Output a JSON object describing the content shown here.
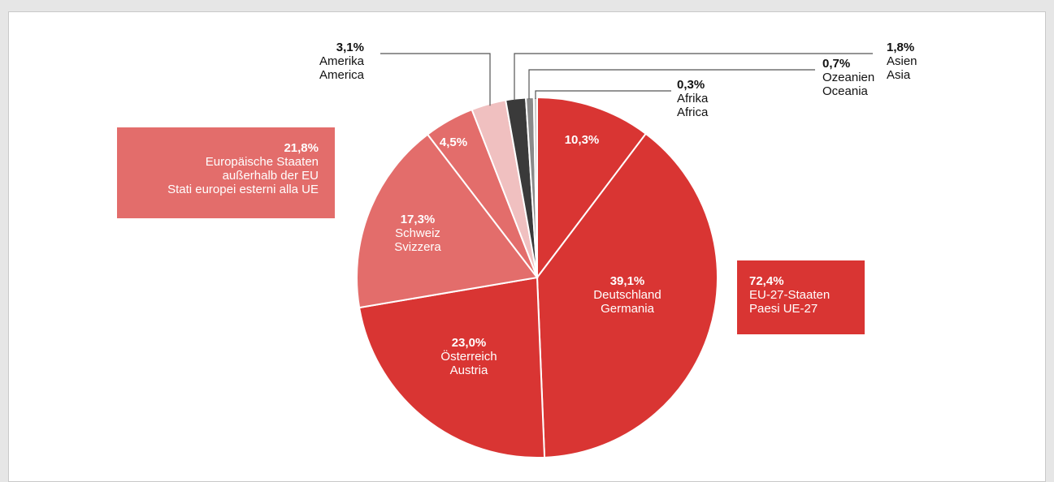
{
  "chart_data": {
    "type": "pie",
    "slices": [
      {
        "id": "de",
        "pct_label": "39,1%",
        "lines": [
          "Deutschland",
          "Germania"
        ],
        "value": 39.1,
        "color": "#d93533"
      },
      {
        "id": "at",
        "pct_label": "23,0%",
        "lines": [
          "Österreich",
          "Austria"
        ],
        "value": 23.0,
        "color": "#d93533"
      },
      {
        "id": "ch",
        "pct_label": "17,3%",
        "lines": [
          "Schweiz",
          "Svizzera"
        ],
        "value": 17.3,
        "color": "#e36d6b"
      },
      {
        "id": "eo",
        "pct_label": "4,5%",
        "lines": [],
        "value": 4.5,
        "color": "#e36d6b"
      },
      {
        "id": "am",
        "pct_label": "3,1%",
        "lines": [
          "Amerika",
          "America"
        ],
        "value": 3.1,
        "color": "#f0c0c0"
      },
      {
        "id": "as",
        "pct_label": "1,8%",
        "lines": [
          "Asien",
          "Asia"
        ],
        "value": 1.8,
        "color": "#3a3a3a"
      },
      {
        "id": "oc",
        "pct_label": "0,7%",
        "lines": [
          "Ozeanien",
          "Oceania"
        ],
        "value": 0.7,
        "color": "#8a8a8a"
      },
      {
        "id": "af",
        "pct_label": "0,3%",
        "lines": [
          "Afrika",
          "Africa"
        ],
        "value": 0.3,
        "color": "#c8c8c8"
      },
      {
        "id": "de2",
        "pct_label": "10,3%",
        "lines": [],
        "value": 10.3,
        "color": "#d93533"
      }
    ],
    "group_boxes": [
      {
        "id": "eu",
        "pct_label": "72,4%",
        "lines": [
          "EU-27-Staaten",
          "Paesi UE-27"
        ],
        "color": "#d93533"
      },
      {
        "id": "noneu",
        "pct_label": "21,8%",
        "lines": [
          "Europäische Staaten",
          "außerhalb der EU",
          "Stati europei esterni alla UE"
        ],
        "color": "#e36d6b"
      }
    ]
  }
}
